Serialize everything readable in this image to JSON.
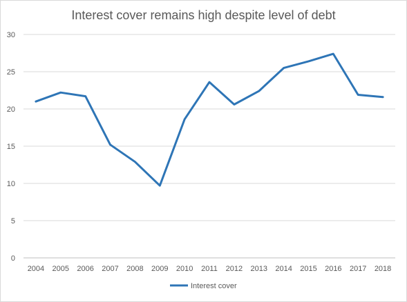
{
  "chart_data": {
    "type": "line",
    "title": "Interest cover remains high despite level of debt",
    "xlabel": "",
    "ylabel": "",
    "x": [
      "2004",
      "2005",
      "2006",
      "2007",
      "2008",
      "2009",
      "2010",
      "2011",
      "2012",
      "2013",
      "2014",
      "2015",
      "2016",
      "2017",
      "2018"
    ],
    "series": [
      {
        "name": "Interest cover",
        "color": "#2e75b6",
        "values": [
          21.0,
          22.2,
          21.7,
          15.2,
          12.9,
          9.7,
          18.6,
          23.6,
          20.6,
          22.4,
          25.5,
          26.4,
          27.4,
          21.9,
          21.6
        ]
      }
    ],
    "ylim": [
      0,
      30
    ],
    "yticks": [
      0,
      5,
      10,
      15,
      20,
      25,
      30
    ],
    "grid": true,
    "legend_position": "bottom"
  }
}
